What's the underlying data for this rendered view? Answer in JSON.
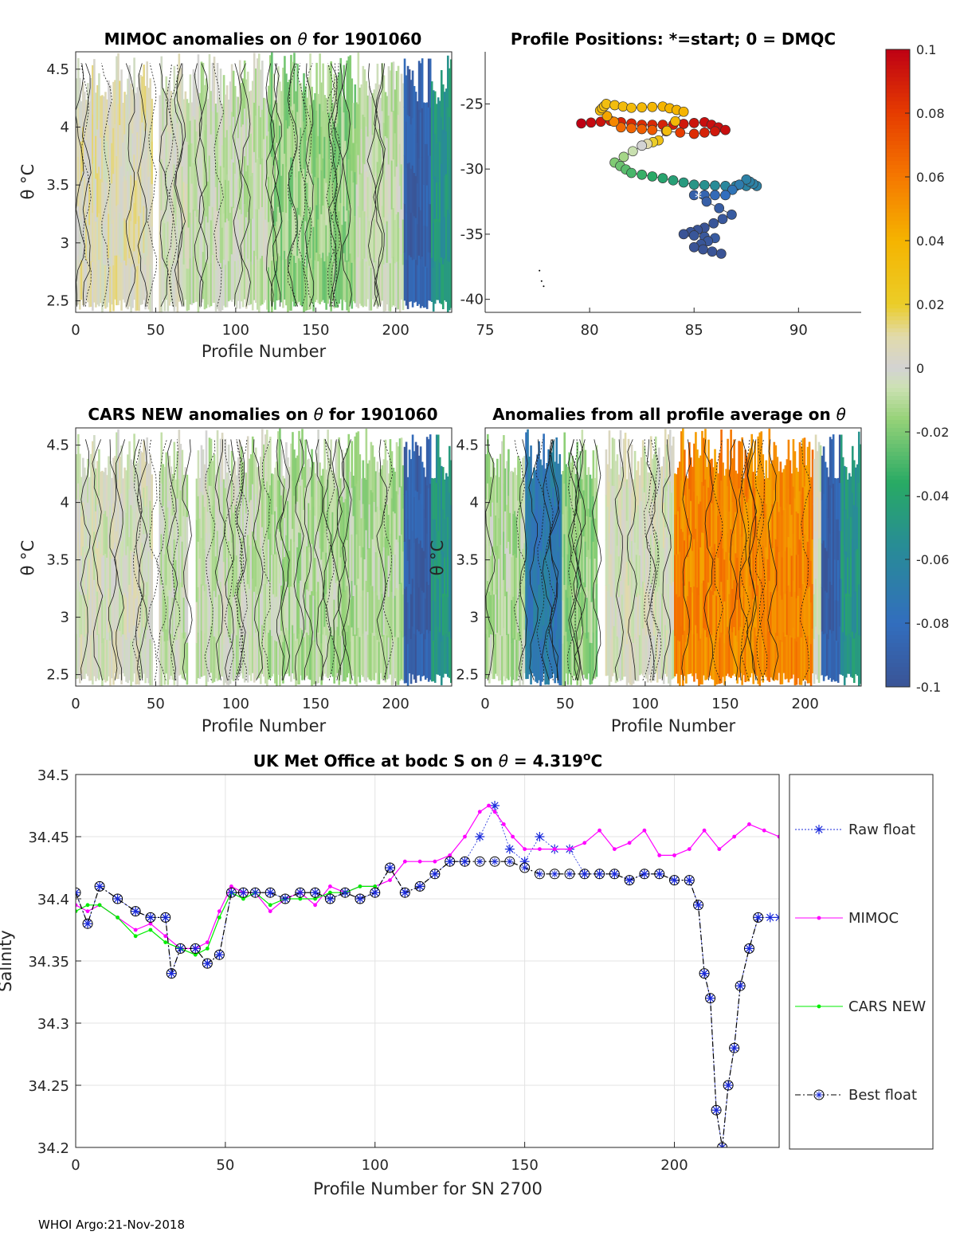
{
  "footer": "WHOI Argo:21-Nov-2018",
  "colorbar": {
    "ticks": [
      "0.1",
      "0.08",
      "0.06",
      "0.04",
      "0.02",
      "0",
      "-0.02",
      "-0.04",
      "-0.06",
      "-0.08",
      "-0.1"
    ],
    "range": [
      -0.1,
      0.1
    ]
  },
  "chart_data": [
    {
      "type": "heatmap",
      "title_prefix": "MIMOC anomalies on ",
      "title_suffix": "  for 1901060",
      "xlabel": "Profile Number",
      "ylabel": "θ °C",
      "xlim": [
        0,
        235
      ],
      "ylim": [
        2.4,
        4.65
      ],
      "xticks": [
        "0",
        "50",
        "100",
        "150",
        "200"
      ],
      "yticks": [
        "2.5",
        "3",
        "3.5",
        "4",
        "4.5"
      ],
      "profiles": [
        {
          "x0": 0,
          "x1": 48,
          "level": 0.005
        },
        {
          "x0": 48,
          "x1": 52,
          "level": "none"
        },
        {
          "x0": 52,
          "x1": 70,
          "level": 0.0
        },
        {
          "x0": 70,
          "x1": 120,
          "level": -0.005
        },
        {
          "x0": 120,
          "x1": 175,
          "level": -0.015
        },
        {
          "x0": 175,
          "x1": 205,
          "level": -0.005
        },
        {
          "x0": 205,
          "x1": 222,
          "level": -0.09
        },
        {
          "x0": 222,
          "x1": 235,
          "level": -0.05
        }
      ]
    },
    {
      "type": "scatter",
      "title": "Profile Positions: *=start; 0 = DMQC",
      "xlim": [
        75,
        93
      ],
      "ylim": [
        -41,
        -21
      ],
      "xticks": [
        "75",
        "80",
        "85",
        "90"
      ],
      "yticks": [
        "-25",
        "-30",
        "-35",
        "-40"
      ],
      "track": [
        {
          "lon": 79.6,
          "lat": -26.5,
          "value": 0.1
        },
        {
          "lon": 81.0,
          "lat": -26.3,
          "value": 0.09
        },
        {
          "lon": 82.5,
          "lat": -26.6,
          "value": 0.085
        },
        {
          "lon": 84.0,
          "lat": -26.6,
          "value": 0.09
        },
        {
          "lon": 85.5,
          "lat": -26.4,
          "value": 0.095
        },
        {
          "lon": 86.5,
          "lat": -27.0,
          "value": 0.095
        },
        {
          "lon": 85.0,
          "lat": -27.3,
          "value": 0.085
        },
        {
          "lon": 83.0,
          "lat": -27.0,
          "value": 0.07
        },
        {
          "lon": 81.5,
          "lat": -26.8,
          "value": 0.065
        },
        {
          "lon": 80.5,
          "lat": -25.5,
          "value": 0.035
        },
        {
          "lon": 80.8,
          "lat": -25.0,
          "value": 0.032
        },
        {
          "lon": 82.0,
          "lat": -25.3,
          "value": 0.035
        },
        {
          "lon": 83.5,
          "lat": -25.2,
          "value": 0.04
        },
        {
          "lon": 84.5,
          "lat": -25.6,
          "value": 0.04
        },
        {
          "lon": 83.3,
          "lat": -27.8,
          "value": 0.03
        },
        {
          "lon": 82.5,
          "lat": -28.2,
          "value": 0.0
        },
        {
          "lon": 81.2,
          "lat": -29.5,
          "value": -0.02
        },
        {
          "lon": 82.0,
          "lat": -30.3,
          "value": -0.03
        },
        {
          "lon": 83.5,
          "lat": -30.7,
          "value": -0.04
        },
        {
          "lon": 85.0,
          "lat": -31.2,
          "value": -0.05
        },
        {
          "lon": 86.5,
          "lat": -31.3,
          "value": -0.06
        },
        {
          "lon": 88.0,
          "lat": -31.3,
          "value": -0.065
        },
        {
          "lon": 87.5,
          "lat": -30.8,
          "value": -0.065
        },
        {
          "lon": 86.5,
          "lat": -32.0,
          "value": -0.08
        },
        {
          "lon": 85.0,
          "lat": -32.0,
          "value": -0.09
        },
        {
          "lon": 86.8,
          "lat": -33.5,
          "value": -0.095
        },
        {
          "lon": 85.5,
          "lat": -34.5,
          "value": -0.1
        },
        {
          "lon": 84.5,
          "lat": -35.0,
          "value": -0.1
        },
        {
          "lon": 86.0,
          "lat": -35.3,
          "value": -0.095
        },
        {
          "lon": 85.0,
          "lat": -36.0,
          "value": -0.1
        },
        {
          "lon": 86.3,
          "lat": -36.5,
          "value": -0.1
        }
      ]
    },
    {
      "type": "heatmap",
      "title_prefix": "CARS NEW anomalies on ",
      "title_suffix": " for 1901060",
      "xlabel": "Profile Number",
      "ylabel": "θ °C",
      "xlim": [
        0,
        235
      ],
      "ylim": [
        2.4,
        4.65
      ],
      "xticks": [
        "0",
        "50",
        "100",
        "150",
        "200"
      ],
      "yticks": [
        "2.5",
        "3",
        "3.5",
        "4",
        "4.5"
      ],
      "profiles": [
        {
          "x0": 0,
          "x1": 48,
          "level": 0.0
        },
        {
          "x0": 48,
          "x1": 52,
          "level": "none"
        },
        {
          "x0": 52,
          "x1": 70,
          "level": -0.005
        },
        {
          "x0": 70,
          "x1": 75,
          "level": "none"
        },
        {
          "x0": 75,
          "x1": 120,
          "level": -0.005
        },
        {
          "x0": 120,
          "x1": 205,
          "level": -0.01
        },
        {
          "x0": 205,
          "x1": 222,
          "level": -0.09
        },
        {
          "x0": 222,
          "x1": 235,
          "level": -0.05
        }
      ]
    },
    {
      "type": "heatmap",
      "title_prefix": "Anomalies from all profile average on ",
      "title_suffix": "",
      "xlabel": "Profile Number",
      "ylabel": "θ °C",
      "xlim": [
        0,
        235
      ],
      "ylim": [
        2.4,
        4.65
      ],
      "xticks": [
        "0",
        "50",
        "100",
        "150",
        "200"
      ],
      "yticks": [
        "2.5",
        "3",
        "3.5",
        "4",
        "4.5"
      ],
      "profiles": [
        {
          "x0": 0,
          "x1": 25,
          "level": -0.01
        },
        {
          "x0": 25,
          "x1": 48,
          "level": -0.07
        },
        {
          "x0": 48,
          "x1": 70,
          "level": -0.015
        },
        {
          "x0": 70,
          "x1": 75,
          "level": "none"
        },
        {
          "x0": 75,
          "x1": 118,
          "level": 0.0
        },
        {
          "x0": 118,
          "x1": 205,
          "level": 0.055
        },
        {
          "x0": 205,
          "x1": 210,
          "level": 0.0
        },
        {
          "x0": 210,
          "x1": 222,
          "level": -0.09
        },
        {
          "x0": 222,
          "x1": 235,
          "level": -0.05
        }
      ]
    },
    {
      "type": "line",
      "title_prefix": "UK Met Office at bodc S on ",
      "title_suffix": " = 4.319",
      "title_unit": "C",
      "xlabel": "Profile Number for SN 2700",
      "ylabel": "Salinity",
      "xlim": [
        0,
        235
      ],
      "ylim": [
        34.2,
        34.5
      ],
      "xticks": [
        "0",
        "50",
        "100",
        "150",
        "200"
      ],
      "yticks": [
        "34.2",
        "34.25",
        "34.3",
        "34.35",
        "34.4",
        "34.45",
        "34.5"
      ],
      "grid": true,
      "series": [
        {
          "name": "Raw float",
          "color": "#1a2adb",
          "marker": "asterisk",
          "x": [
            0,
            4,
            8,
            14,
            20,
            25,
            30,
            32,
            35,
            40,
            44,
            48,
            52,
            56,
            60,
            65,
            70,
            75,
            80,
            85,
            90,
            95,
            100,
            105,
            110,
            115,
            120,
            125,
            130,
            135,
            140,
            145,
            150,
            155,
            160,
            165,
            170,
            175,
            180,
            185,
            190,
            195,
            200,
            205,
            208,
            210,
            212,
            214,
            216,
            218,
            220,
            222,
            225,
            228,
            232,
            235
          ],
          "y": [
            34.405,
            34.38,
            34.41,
            34.4,
            34.39,
            34.385,
            34.385,
            34.34,
            34.36,
            34.36,
            34.348,
            34.355,
            34.405,
            34.405,
            34.405,
            34.405,
            34.4,
            34.405,
            34.405,
            34.4,
            34.405,
            34.4,
            34.405,
            34.425,
            34.405,
            34.41,
            34.42,
            34.43,
            34.43,
            34.45,
            34.475,
            34.44,
            34.43,
            34.45,
            34.44,
            34.44,
            34.42,
            34.42,
            34.42,
            34.415,
            34.42,
            34.42,
            34.415,
            34.415,
            34.395,
            34.34,
            34.32,
            34.23,
            34.2,
            34.25,
            34.28,
            34.33,
            34.36,
            34.385,
            34.385,
            34.385
          ]
        },
        {
          "name": "MIMOC",
          "color": "#ff00ff",
          "marker": "dot",
          "x": [
            0,
            4,
            8,
            14,
            20,
            25,
            30,
            35,
            40,
            44,
            48,
            52,
            56,
            60,
            65,
            70,
            75,
            80,
            85,
            90,
            95,
            100,
            105,
            110,
            115,
            120,
            125,
            130,
            135,
            138,
            140,
            143,
            146,
            150,
            155,
            160,
            165,
            170,
            175,
            180,
            185,
            190,
            195,
            200,
            205,
            210,
            215,
            220,
            225,
            230,
            235
          ],
          "y": [
            34.395,
            34.39,
            34.395,
            34.385,
            34.375,
            34.38,
            34.37,
            34.36,
            34.36,
            34.365,
            34.39,
            34.41,
            34.405,
            34.405,
            34.39,
            34.4,
            34.405,
            34.395,
            34.41,
            34.405,
            34.41,
            34.41,
            34.415,
            34.43,
            34.43,
            34.43,
            34.435,
            34.45,
            34.47,
            34.475,
            34.47,
            34.46,
            34.45,
            34.44,
            34.44,
            34.44,
            34.44,
            34.445,
            34.455,
            34.44,
            34.445,
            34.455,
            34.435,
            34.435,
            34.44,
            34.455,
            34.44,
            34.45,
            34.46,
            34.455,
            34.45
          ]
        },
        {
          "name": "CARS NEW",
          "color": "#00ee00",
          "marker": "dot",
          "x": [
            0,
            4,
            8,
            14,
            20,
            25,
            30,
            35,
            40,
            44,
            48,
            52,
            56,
            60,
            65,
            70,
            75,
            80,
            85,
            90,
            95,
            100
          ],
          "y": [
            34.39,
            34.395,
            34.395,
            34.385,
            34.37,
            34.375,
            34.365,
            34.36,
            34.355,
            34.36,
            34.385,
            34.405,
            34.4,
            34.405,
            34.395,
            34.4,
            34.4,
            34.4,
            34.405,
            34.405,
            34.41,
            34.41
          ]
        },
        {
          "name": "Best float",
          "color": "#000000",
          "marker": "circle-star",
          "line": "dashdot",
          "x": [
            0,
            4,
            8,
            14,
            20,
            25,
            30,
            32,
            35,
            40,
            44,
            48,
            52,
            56,
            60,
            65,
            70,
            75,
            80,
            85,
            90,
            95,
            100,
            105,
            110,
            115,
            120,
            125,
            130,
            135,
            140,
            145,
            150,
            155,
            160,
            165,
            170,
            175,
            180,
            185,
            190,
            195,
            200,
            205,
            208,
            210,
            212,
            214,
            216,
            218,
            220,
            222,
            225,
            228
          ],
          "y": [
            34.405,
            34.38,
            34.41,
            34.4,
            34.39,
            34.385,
            34.385,
            34.34,
            34.36,
            34.36,
            34.348,
            34.355,
            34.405,
            34.405,
            34.405,
            34.405,
            34.4,
            34.405,
            34.405,
            34.4,
            34.405,
            34.4,
            34.405,
            34.425,
            34.405,
            34.41,
            34.42,
            34.43,
            34.43,
            34.43,
            34.43,
            34.43,
            34.425,
            34.42,
            34.42,
            34.42,
            34.42,
            34.42,
            34.42,
            34.415,
            34.42,
            34.42,
            34.415,
            34.415,
            34.395,
            34.34,
            34.32,
            34.23,
            34.2,
            34.25,
            34.28,
            34.33,
            34.36,
            34.385
          ]
        }
      ]
    }
  ]
}
